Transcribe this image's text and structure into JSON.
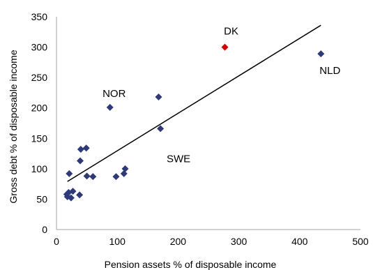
{
  "chart_data": {
    "type": "scatter",
    "xlabel": "Pension assets % of disposable income",
    "ylabel": "Gross debt % of disposable income",
    "xlim": [
      0,
      500
    ],
    "ylim": [
      0,
      350
    ],
    "xticks": [
      0,
      100,
      200,
      300,
      400,
      500
    ],
    "yticks": [
      0,
      50,
      100,
      150,
      200,
      250,
      300,
      350
    ],
    "grid": false,
    "colors": {
      "default": "#2e3a78",
      "highlight": "#d40000",
      "trend": "#000000"
    },
    "points": [
      {
        "x": 17,
        "y": 58
      },
      {
        "x": 18,
        "y": 54
      },
      {
        "x": 20,
        "y": 61
      },
      {
        "x": 21,
        "y": 92
      },
      {
        "x": 24,
        "y": 52
      },
      {
        "x": 27,
        "y": 63
      },
      {
        "x": 38,
        "y": 57
      },
      {
        "x": 39,
        "y": 113
      },
      {
        "x": 40,
        "y": 132
      },
      {
        "x": 49,
        "y": 134
      },
      {
        "x": 50,
        "y": 88
      },
      {
        "x": 60,
        "y": 87
      },
      {
        "x": 88,
        "y": 201,
        "label": "NOR"
      },
      {
        "x": 98,
        "y": 87
      },
      {
        "x": 111,
        "y": 92
      },
      {
        "x": 113,
        "y": 100
      },
      {
        "x": 168,
        "y": 218
      },
      {
        "x": 171,
        "y": 166,
        "label": "SWE"
      },
      {
        "x": 277,
        "y": 300,
        "label": "DK",
        "highlight": true
      },
      {
        "x": 435,
        "y": 289,
        "label": "NLD"
      }
    ],
    "trendline": {
      "x": [
        18,
        435
      ],
      "y": [
        79,
        336
      ]
    }
  }
}
